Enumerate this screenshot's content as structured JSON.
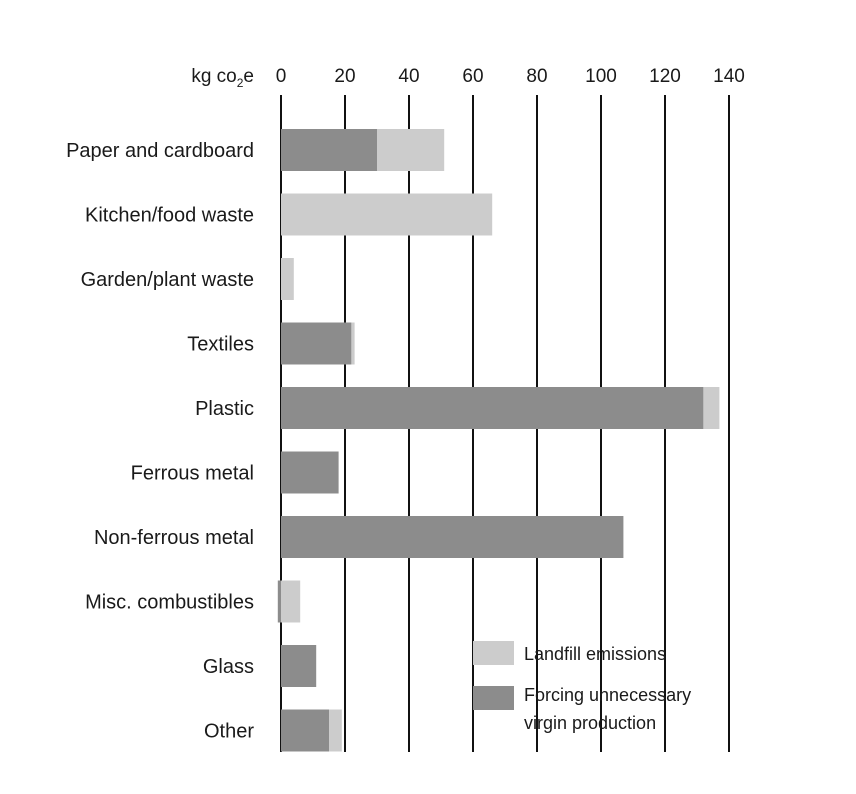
{
  "chart_data": {
    "type": "bar",
    "orientation": "horizontal",
    "stacked": true,
    "xlabel": "kg co",
    "xlabel_subscript": "2",
    "xlabel_suffix": "e",
    "xlim": [
      0,
      140
    ],
    "ticks": [
      0,
      20,
      40,
      60,
      80,
      100,
      120,
      140
    ],
    "grid": true,
    "legend_position": "bottom-right",
    "categories": [
      "Paper and cardboard",
      "Kitchen/food waste",
      "Garden/plant waste",
      "Textiles",
      "Plastic",
      "Ferrous metal",
      "Non-ferrous metal",
      "Misc. combustibles",
      "Glass",
      "Other"
    ],
    "series": [
      {
        "name": "Forcing unnecessary virgin production",
        "legend_lines": [
          "Forcing unnecessary",
          "virgin production"
        ],
        "color": "#8c8c8c",
        "values": [
          30,
          0,
          0,
          22,
          132,
          18,
          107,
          -1,
          11,
          15
        ]
      },
      {
        "name": "Landfill emissions",
        "legend_lines": [
          "Landfill emissions"
        ],
        "color": "#cccccc",
        "values": [
          21,
          66,
          4,
          1,
          5,
          0,
          0,
          6,
          0,
          4
        ]
      }
    ],
    "legend_order": [
      1,
      0
    ]
  }
}
